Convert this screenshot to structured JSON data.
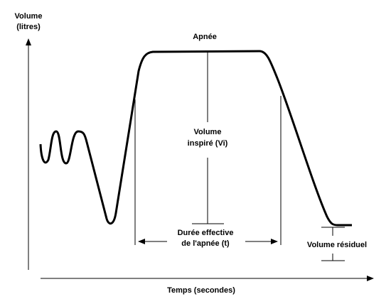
{
  "axes": {
    "y_label": [
      "Volume",
      "(litres)"
    ],
    "x_label": "Temps (secondes)"
  },
  "annotations": {
    "apnea": "Apnée",
    "inspired_volume": [
      "Volume",
      "inspiré (Vi)"
    ],
    "effective_duration": [
      "Durée effective",
      "de l'apnée (t)"
    ],
    "residual_volume": "Volume résiduel"
  }
}
